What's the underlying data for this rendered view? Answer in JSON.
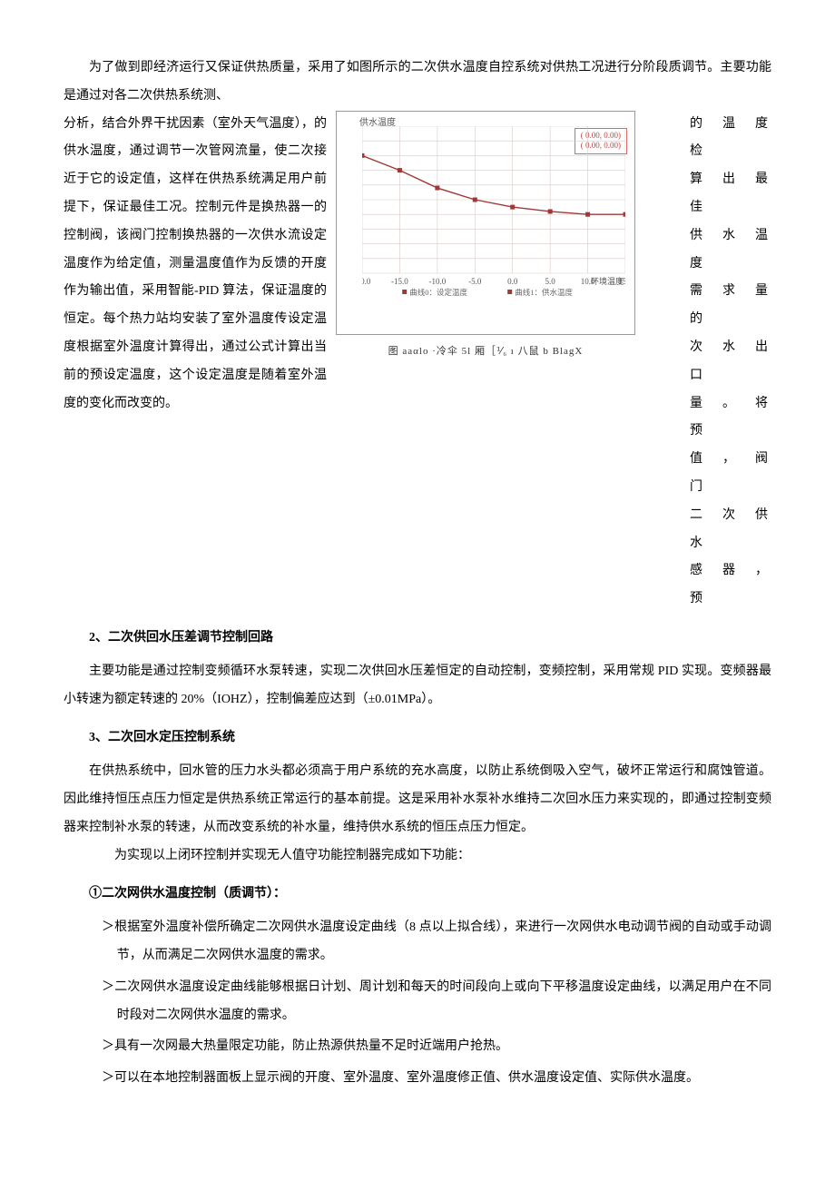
{
  "intro_para": "为了做到即经济运行又保证供热质量，采用了如图所示的二次供水温度自控系统对供热工况进行分阶段质调节。主要功能是通过对各二次供热系统测、",
  "left_column": "分析，结合外界干扰因素（室外天气温度），的供水温度，通过调节一次管网流量，使二次接近于它的设定值，这样在供热系统满足用户前提下，保证最佳工况。控制元件是换热器一的控制阀，该阀门控制换热器的一次供水流设定温度作为给定值，测量温度值作为反馈的开度作为输出值，采用智能-PID 算法，保证温度的恒定。每个热力站均安装了室外温度传设定温度根据室外温度计算得出，通过公式计算出当前的预设定温度，这个设定温度是随着室外温度的变化而改变的。",
  "right_column": [
    "的 温 度 检",
    "算 出 最 佳",
    "供 水 温 度",
    "需 求 量 的",
    "次 水 出 口",
    "量 。 将 预",
    "值 ， 阀 门",
    "二 次 供 水",
    "感 器 ， 预"
  ],
  "chart": {
    "y_label_top": "供水温度",
    "cursor1": "(     0.00,        0.00)",
    "cursor2": "(     0.00,        0.00)",
    "x_axis_label": "环境温度",
    "legend_line0": "曲线0：设定温度",
    "legend_line1": "曲线1：供水温度",
    "caption": "图 aaαlo   ·冷伞 5l 厢［⅟₆ ı 八鼠 b  BlagX",
    "x_min": -20,
    "x_max": 15,
    "x_step": 5,
    "y_min": 0,
    "y_max": 100,
    "y_step": 10,
    "grid_color": "#d9c9c4",
    "line_color": "#a03838",
    "marker_color": "#a03838",
    "background": "#ffffff",
    "data_points": [
      {
        "x": -20,
        "y": 80
      },
      {
        "x": -15,
        "y": 70
      },
      {
        "x": -10,
        "y": 58
      },
      {
        "x": -5,
        "y": 50
      },
      {
        "x": 0,
        "y": 45
      },
      {
        "x": 5,
        "y": 42
      },
      {
        "x": 10,
        "y": 40
      },
      {
        "x": 15,
        "y": 40
      }
    ]
  },
  "section2": {
    "title": "2、二次供回水压差调节控制回路",
    "body": "主要功能是通过控制变频循环水泵转速，实现二次供回水压差恒定的自动控制，变频控制，采用常规 PID 实现。变频器最小转速为额定转速的 20%（IOHZ），控制偏差应达到（±0.01MPa）。"
  },
  "section3": {
    "title": "3、二次回水定压控制系统",
    "body1": "在供热系统中，回水管的压力水头都必须高于用户系统的充水高度，以防止系统倒吸入空气，破坏正常运行和腐蚀管道。因此维持恒压点压力恒定是供热系统正常运行的基本前提。这是采用补水泵补水维持二次回水压力来实现的，即通过控制变频器来控制补水泵的转速，从而改变系统的补水量，维持供水系统的恒压点压力恒定。",
    "body2": "为实现以上闭环控制并实现无人值守功能控制器完成如下功能："
  },
  "subsection": {
    "title": "①二次网供水温度控制（质调节）：",
    "items": [
      "＞根据室外温度补偿所确定二次网供水温度设定曲线（8 点以上拟合线），来进行一次网供水电动调节阀的自动或手动调节，从而满足二次网供水温度的需求。",
      "＞二次网供水温度设定曲线能够根据日计划、周计划和每天的时间段向上或向下平移温度设定曲线，以满足用户在不同时段对二次网供水温度的需求。",
      "＞具有一次网最大热量限定功能，防止热源供热量不足时近端用户抢热。",
      "＞可以在本地控制器面板上显示阀的开度、室外温度、室外温度修正值、供水温度设定值、实际供水温度。"
    ]
  }
}
